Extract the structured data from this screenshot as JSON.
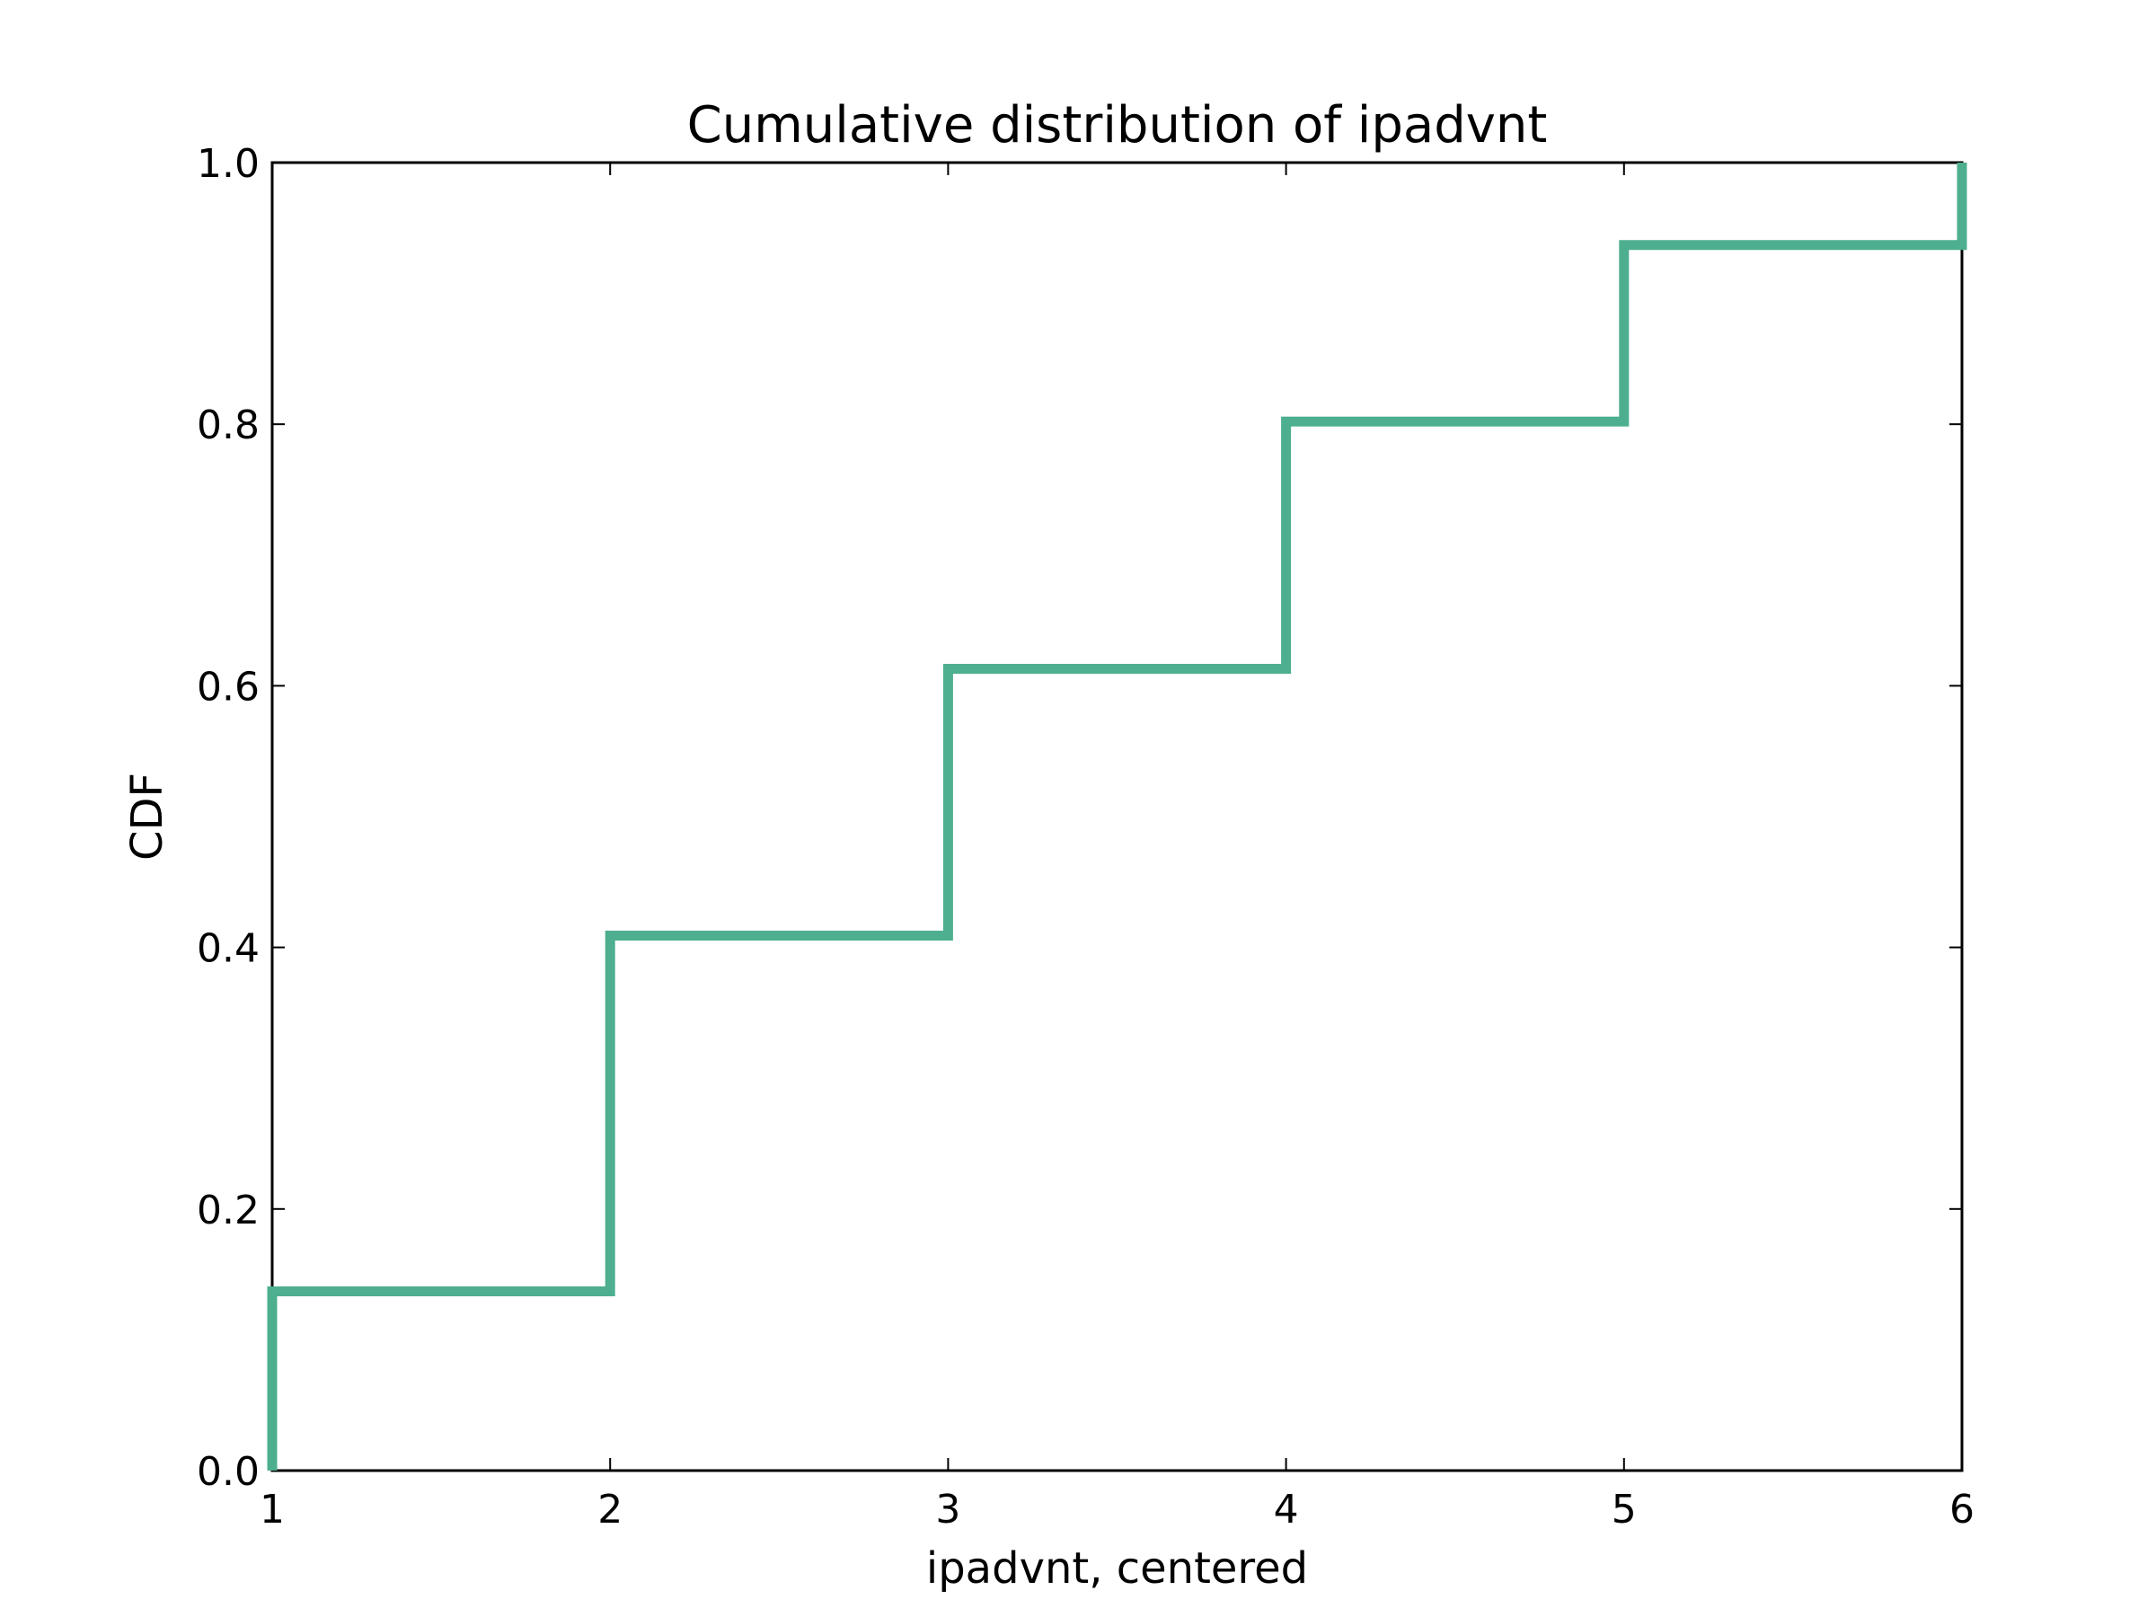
{
  "chart_data": {
    "type": "line",
    "title": "Cumulative distribution of ipadvnt",
    "xlabel": "ipadvnt, centered",
    "ylabel": "CDF",
    "xlim": [
      1,
      6
    ],
    "ylim": [
      0,
      1
    ],
    "xticks": [
      "1",
      "2",
      "3",
      "4",
      "5",
      "6"
    ],
    "yticks": [
      "0.0",
      "0.2",
      "0.4",
      "0.6",
      "0.8",
      "1.0"
    ],
    "grid": false,
    "step": "post",
    "series": [
      {
        "color": "#4daf8f",
        "x": [
          1,
          2,
          3,
          4,
          5,
          6
        ],
        "y": [
          0.137,
          0.409,
          0.613,
          0.802,
          0.937,
          1.0
        ]
      }
    ]
  }
}
